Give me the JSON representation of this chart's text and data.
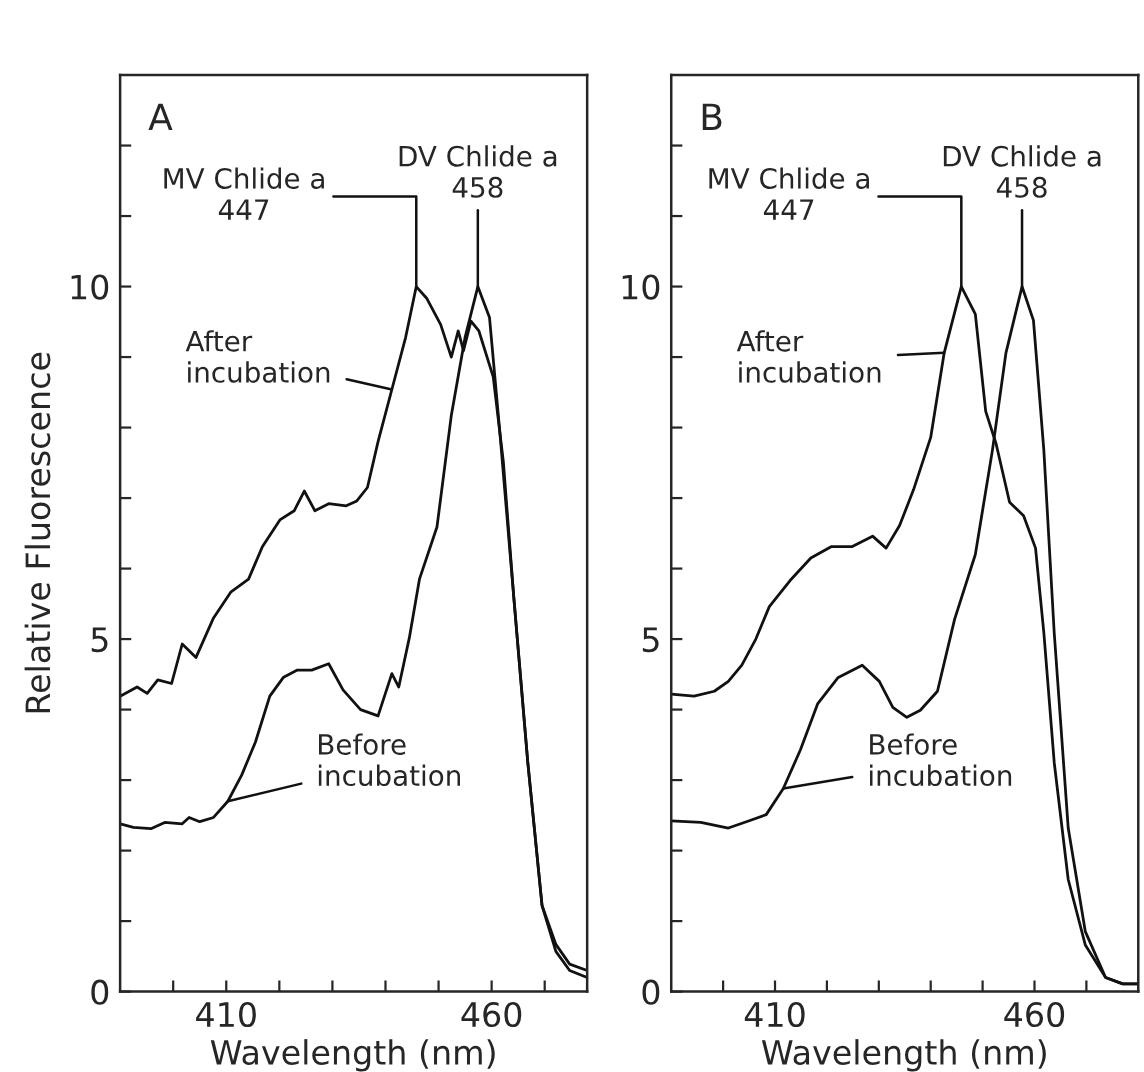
{
  "chart_data": [
    {
      "type": "line",
      "title": "A",
      "xlabel": "Wavelength (nm)",
      "ylabel": "Relative Fluorescence",
      "xlim": [
        390,
        478
      ],
      "ylim": [
        0,
        13
      ],
      "xticks": [
        {
          "value": 400,
          "label": null
        },
        410,
        {
          "value": 420,
          "label": null
        },
        {
          "value": 430,
          "label": null
        },
        {
          "value": 440,
          "label": null
        },
        {
          "value": 450,
          "label": null
        },
        460,
        {
          "value": 470,
          "label": null
        }
      ],
      "yticks": [
        0,
        {
          "value": 1,
          "label": null
        },
        {
          "value": 2,
          "label": null
        },
        {
          "value": 3,
          "label": null
        },
        {
          "value": 4,
          "label": null
        },
        5,
        {
          "value": 6,
          "label": null
        },
        {
          "value": 7,
          "label": null
        },
        {
          "value": 8,
          "label": null
        },
        {
          "value": 9,
          "label": null
        },
        10,
        {
          "value": 11,
          "label": null
        },
        {
          "value": 12,
          "label": null
        }
      ],
      "grid": false,
      "annotations": [
        {
          "text": "MV Chlide a\n447",
          "x": 445.8,
          "y": 10.0
        },
        {
          "text": "DV Chlide a\n458",
          "x": 457.4,
          "y": 10.0
        },
        {
          "text": "After\nincubation",
          "x": 441.2,
          "y": 8.54
        },
        {
          "text": "Before\nincubation",
          "x": 410.3,
          "y": 2.7
        }
      ],
      "series": [
        {
          "color": "#111111",
          "x": [
            390,
            393.2,
            395.1,
            397.1,
            399.7,
            401.7,
            404.3,
            407.6,
            410.9,
            414.2,
            416.8,
            420.1,
            422.8,
            424.7,
            426.7,
            429.3,
            432.6,
            434.6,
            436.6,
            438.6,
            441.2,
            443.8,
            445.8,
            447.8,
            450.4,
            452.4,
            453.7,
            454.7,
            456.1,
            457.6,
            460.3,
            462.2,
            464.2,
            466.8,
            469.5,
            472.1,
            474.7,
            478
          ],
          "values": [
            4.19,
            4.32,
            4.23,
            4.42,
            4.37,
            4.93,
            4.74,
            5.3,
            5.67,
            5.85,
            6.31,
            6.69,
            6.82,
            7.1,
            6.82,
            6.92,
            6.89,
            6.96,
            7.15,
            7.8,
            8.54,
            9.28,
            10.0,
            9.83,
            9.46,
            9.0,
            9.37,
            9.09,
            9.51,
            9.37,
            8.72,
            7.52,
            5.57,
            3.26,
            1.22,
            0.57,
            0.3,
            0.2
          ]
        },
        {
          "color": "#111111",
          "x": [
            390,
            392.5,
            395.8,
            398.4,
            401.7,
            403.0,
            405.0,
            407.6,
            410.3,
            412.9,
            415.5,
            418.2,
            420.8,
            423.4,
            426.1,
            429.3,
            432.0,
            435.3,
            438.6,
            441.2,
            442.5,
            444.5,
            446.4,
            449.7,
            452.4,
            455.0,
            457.4,
            459.6,
            461.6,
            464.2,
            466.8,
            469.5,
            472.1,
            474.7,
            478
          ],
          "values": [
            2.38,
            2.33,
            2.31,
            2.4,
            2.38,
            2.47,
            2.41,
            2.47,
            2.7,
            3.07,
            3.54,
            4.19,
            4.46,
            4.56,
            4.56,
            4.65,
            4.28,
            4.0,
            3.91,
            4.51,
            4.32,
            5.02,
            5.85,
            6.59,
            8.17,
            9.28,
            10.0,
            9.56,
            7.89,
            5.57,
            3.26,
            1.22,
            0.67,
            0.39,
            0.3
          ]
        }
      ]
    },
    {
      "type": "line",
      "title": "B",
      "xlabel": "Wavelength (nm)",
      "xlim": [
        390,
        480
      ],
      "ylim": [
        0,
        13
      ],
      "xticks": [
        {
          "value": 400,
          "label": null
        },
        410,
        {
          "value": 420,
          "label": null
        },
        {
          "value": 430,
          "label": null
        },
        {
          "value": 440,
          "label": null
        },
        {
          "value": 450,
          "label": null
        },
        460,
        {
          "value": 470,
          "label": null
        }
      ],
      "yticks": [
        0,
        {
          "value": 1,
          "label": null
        },
        {
          "value": 2,
          "label": null
        },
        {
          "value": 3,
          "label": null
        },
        {
          "value": 4,
          "label": null
        },
        5,
        {
          "value": 6,
          "label": null
        },
        {
          "value": 7,
          "label": null
        },
        {
          "value": 8,
          "label": null
        },
        {
          "value": 9,
          "label": null
        },
        10,
        {
          "value": 11,
          "label": null
        },
        {
          "value": 12,
          "label": null
        }
      ],
      "grid": false,
      "annotations": [
        {
          "text": "MV Chlide a\n447",
          "x": 445.9,
          "y": 10.0
        },
        {
          "text": "DV Chlide a\n458",
          "x": 457.6,
          "y": 10.0
        },
        {
          "text": "After\nincubation",
          "x": 442.6,
          "y": 9.06
        },
        {
          "text": "Before\nincubation",
          "x": 411.6,
          "y": 2.88
        }
      ],
      "series": [
        {
          "color": "#111111",
          "x": [
            390,
            394.4,
            398.3,
            401.0,
            403.6,
            406.3,
            408.9,
            412.9,
            416.9,
            420.8,
            424.8,
            428.8,
            431.4,
            434.0,
            436.7,
            440.0,
            442.6,
            445.9,
            448.6,
            450.6,
            452.6,
            455.2,
            457.9,
            460.2,
            461.8,
            463.8,
            466.5,
            469.8,
            473.7,
            477.0,
            480
          ],
          "values": [
            4.22,
            4.19,
            4.26,
            4.4,
            4.63,
            5.0,
            5.46,
            5.83,
            6.15,
            6.31,
            6.31,
            6.46,
            6.29,
            6.61,
            7.12,
            7.86,
            9.06,
            10.0,
            9.61,
            8.23,
            7.77,
            6.94,
            6.75,
            6.29,
            5.09,
            3.25,
            1.59,
            0.66,
            0.2,
            0.11,
            0.11
          ]
        },
        {
          "color": "#111111",
          "x": [
            390,
            395.7,
            401.0,
            404.9,
            408.3,
            411.6,
            414.9,
            418.2,
            422.1,
            426.8,
            430.1,
            432.7,
            435.4,
            438.0,
            441.3,
            444.6,
            448.6,
            451.9,
            454.5,
            457.6,
            459.8,
            461.8,
            463.8,
            466.5,
            469.8,
            473.7,
            477.0,
            480
          ],
          "values": [
            2.42,
            2.4,
            2.32,
            2.42,
            2.51,
            2.88,
            3.43,
            4.08,
            4.45,
            4.63,
            4.4,
            4.03,
            3.89,
            3.99,
            4.26,
            5.28,
            6.2,
            7.68,
            9.06,
            10.0,
            9.52,
            7.68,
            5.09,
            2.32,
            0.85,
            0.2,
            0.11,
            0.11
          ]
        }
      ]
    }
  ]
}
